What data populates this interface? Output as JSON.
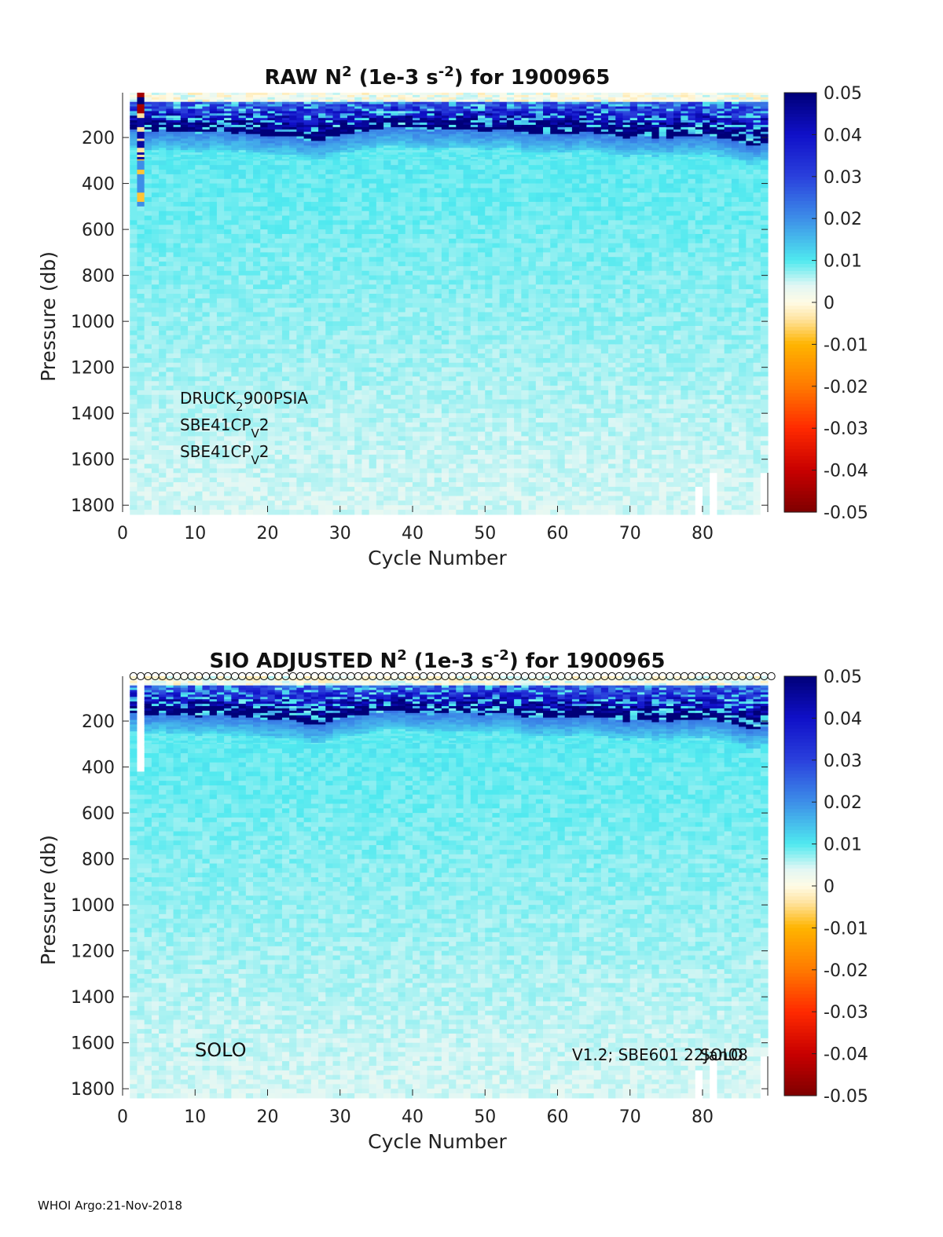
{
  "footer": "WHOI Argo:21-Nov-2018",
  "colormap": {
    "stops": [
      {
        "v": -0.05,
        "color": "#7f0000"
      },
      {
        "v": -0.04,
        "color": "#c80000"
      },
      {
        "v": -0.03,
        "color": "#ff2a00"
      },
      {
        "v": -0.02,
        "color": "#ff7a00"
      },
      {
        "v": -0.01,
        "color": "#ffb400"
      },
      {
        "v": -0.004,
        "color": "#ffe4a0"
      },
      {
        "v": 0.0,
        "color": "#fffbe6"
      },
      {
        "v": 0.004,
        "color": "#e2f7f4"
      },
      {
        "v": 0.01,
        "color": "#4fe9ef"
      },
      {
        "v": 0.02,
        "color": "#3d8ee8"
      },
      {
        "v": 0.03,
        "color": "#2a40dc"
      },
      {
        "v": 0.04,
        "color": "#1010c8"
      },
      {
        "v": 0.05,
        "color": "#000078"
      }
    ]
  },
  "chart_data": [
    {
      "type": "heatmap",
      "title": {
        "pre": "RAW N",
        "sup1": "2",
        "mid": " (1e-3 s",
        "sup2": "-2",
        "post": ") for 1900965"
      },
      "xlabel": "Cycle Number",
      "ylabel": "Pressure (db)",
      "xlim": [
        0,
        89
      ],
      "ylim": [
        1830,
        5
      ],
      "xticks": [
        0,
        10,
        20,
        30,
        40,
        50,
        60,
        70,
        80
      ],
      "yticks": [
        200,
        400,
        600,
        800,
        1000,
        1200,
        1400,
        1600,
        1800
      ],
      "colorbar": {
        "ticks": [
          "0.05",
          "0.04",
          "0.03",
          "0.02",
          "0.01",
          "0",
          "-0.01",
          "-0.02",
          "-0.03",
          "-0.04",
          "-0.05"
        ],
        "range": [
          -0.05,
          0.05
        ]
      },
      "sensor_labels": [
        {
          "main": "DRUCK",
          "sub": "2",
          "rest": "900PSIA"
        },
        {
          "main": "SBE41CP",
          "sub": "V",
          "rest": "2"
        },
        {
          "main": "SBE41CP",
          "sub": "V",
          "rest": "2"
        }
      ],
      "mixed_layer_top_db": 50,
      "pycnocline_base_db": [
        170,
        175,
        180,
        175,
        170,
        175,
        175,
        180,
        180,
        185,
        180,
        175,
        175,
        180,
        185,
        180,
        185,
        190,
        195,
        200,
        200,
        195,
        200,
        210,
        215,
        220,
        215,
        210,
        200,
        190,
        185,
        180,
        175,
        170,
        165,
        160,
        160,
        160,
        165,
        170,
        170,
        175,
        170,
        170,
        165,
        165,
        170,
        170,
        175,
        175,
        170,
        165,
        165,
        175,
        185,
        190,
        190,
        185,
        185,
        190,
        190,
        185,
        180,
        180,
        185,
        190,
        195,
        200,
        205,
        200,
        195,
        200,
        205,
        200,
        205,
        200,
        195,
        200,
        195,
        190,
        200,
        205,
        210,
        220,
        230,
        240,
        235,
        230,
        230
      ],
      "deep_values": {
        "shallow": 0.0095,
        "deep": 0.0045
      },
      "anomalies_note": "cycle 2 column shows strong mixed positive/negative values",
      "has_anomaly_column": true,
      "gaps": [
        {
          "cycle": 79.5,
          "from_db": 1720,
          "to_db": 1830
        },
        {
          "cycle": 81.5,
          "from_db": 1660,
          "to_db": 1830
        },
        {
          "cycle": 88.5,
          "from_db": 1660,
          "to_db": 1830
        }
      ],
      "markers_row": false
    },
    {
      "type": "heatmap",
      "title": {
        "pre": "SIO  ADJUSTED N",
        "sup1": "2",
        "mid": " (1e-3 s",
        "sup2": "-2",
        "post": ") for 1900965"
      },
      "xlabel": "Cycle Number",
      "ylabel": "Pressure (db)",
      "xlim": [
        0,
        89
      ],
      "ylim": [
        1830,
        5
      ],
      "xticks": [
        0,
        10,
        20,
        30,
        40,
        50,
        60,
        70,
        80
      ],
      "yticks": [
        200,
        400,
        600,
        800,
        1000,
        1200,
        1400,
        1600,
        1800
      ],
      "colorbar": {
        "ticks": [
          "0.05",
          "0.04",
          "0.03",
          "0.02",
          "0.01",
          "0",
          "-0.01",
          "-0.02",
          "-0.03",
          "-0.04",
          "-0.05"
        ],
        "range": [
          -0.05,
          0.05
        ]
      },
      "annotation_left": "SOLO",
      "annotation_right": "V1.2; SBE601 22Jan08",
      "annotation_overlap": "SOLO",
      "mixed_layer_top_db": 50,
      "pycnocline_base_db": [
        170,
        175,
        180,
        175,
        170,
        175,
        175,
        180,
        180,
        185,
        180,
        175,
        175,
        180,
        185,
        180,
        185,
        190,
        195,
        200,
        200,
        195,
        200,
        210,
        215,
        220,
        215,
        210,
        200,
        190,
        185,
        180,
        175,
        170,
        165,
        160,
        160,
        160,
        165,
        170,
        170,
        175,
        170,
        170,
        165,
        165,
        170,
        170,
        175,
        175,
        170,
        165,
        165,
        175,
        185,
        190,
        190,
        185,
        185,
        190,
        190,
        185,
        180,
        180,
        185,
        190,
        195,
        200,
        205,
        200,
        195,
        200,
        205,
        200,
        205,
        200,
        195,
        200,
        195,
        190,
        200,
        205,
        210,
        220,
        230,
        240,
        235,
        230,
        230
      ],
      "deep_values": {
        "shallow": 0.0095,
        "deep": 0.0045
      },
      "has_anomaly_column": false,
      "gaps": [
        {
          "cycle": 2.5,
          "from_db": 5,
          "to_db": 420
        },
        {
          "cycle": 79.5,
          "from_db": 1720,
          "to_db": 1830
        },
        {
          "cycle": 81.5,
          "from_db": 1660,
          "to_db": 1830
        },
        {
          "cycle": 88.5,
          "from_db": 1660,
          "to_db": 1830
        }
      ],
      "markers_row": true,
      "marker_cycles_count": 89
    }
  ]
}
